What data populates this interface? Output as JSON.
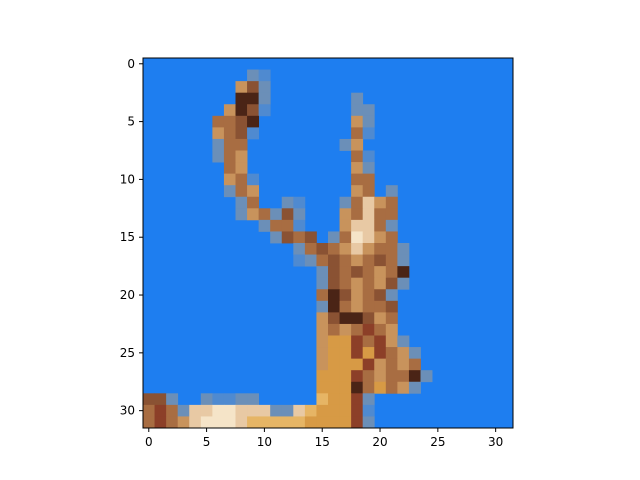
{
  "chart_data": {
    "type": "heatmap",
    "title": "",
    "xlabel": "",
    "ylabel": "",
    "image_size": [
      32,
      32
    ],
    "xlim": [
      -0.5,
      31.5
    ],
    "ylim": [
      31.5,
      -0.5
    ],
    "x_ticks": [
      0,
      5,
      10,
      15,
      20,
      25,
      30
    ],
    "y_ticks": [
      0,
      5,
      10,
      15,
      20,
      25,
      30
    ],
    "x_tick_labels": [
      "0",
      "5",
      "10",
      "15",
      "20",
      "25",
      "30"
    ],
    "y_tick_labels": [
      "0",
      "5",
      "10",
      "15",
      "20",
      "25",
      "30"
    ],
    "grid": false,
    "background_color": "#1e7ef0",
    "palette": {
      "dk": "#4a2416",
      "br": "#8a5233",
      "md": "#a86d42",
      "rb": "#8c3f28",
      "tn": "#c8935c",
      "or": "#d79a45",
      "lt": "#e8c9a4",
      "cr": "#f5e4c8",
      "gl": "#e6b565",
      "ed": "#6b8fb8",
      "gr": "#4f8ad0"
    },
    "pixels": [
      {
        "x": 9,
        "y": 1,
        "c": "ed"
      },
      {
        "x": 10,
        "y": 1,
        "c": "gr"
      },
      {
        "x": 8,
        "y": 2,
        "c": "tn"
      },
      {
        "x": 9,
        "y": 2,
        "c": "br"
      },
      {
        "x": 10,
        "y": 2,
        "c": "ed"
      },
      {
        "x": 8,
        "y": 3,
        "c": "dk"
      },
      {
        "x": 9,
        "y": 3,
        "c": "dk"
      },
      {
        "x": 10,
        "y": 3,
        "c": "ed"
      },
      {
        "x": 18,
        "y": 3,
        "c": "ed"
      },
      {
        "x": 7,
        "y": 4,
        "c": "tn"
      },
      {
        "x": 8,
        "y": 4,
        "c": "dk"
      },
      {
        "x": 9,
        "y": 4,
        "c": "br"
      },
      {
        "x": 10,
        "y": 4,
        "c": "gr"
      },
      {
        "x": 18,
        "y": 4,
        "c": "ed"
      },
      {
        "x": 19,
        "y": 4,
        "c": "ed"
      },
      {
        "x": 6,
        "y": 5,
        "c": "md"
      },
      {
        "x": 7,
        "y": 5,
        "c": "md"
      },
      {
        "x": 8,
        "y": 5,
        "c": "br"
      },
      {
        "x": 9,
        "y": 5,
        "c": "dk"
      },
      {
        "x": 18,
        "y": 5,
        "c": "tn"
      },
      {
        "x": 19,
        "y": 5,
        "c": "ed"
      },
      {
        "x": 6,
        "y": 6,
        "c": "tn"
      },
      {
        "x": 7,
        "y": 6,
        "c": "md"
      },
      {
        "x": 8,
        "y": 6,
        "c": "br"
      },
      {
        "x": 9,
        "y": 6,
        "c": "gr"
      },
      {
        "x": 18,
        "y": 6,
        "c": "md"
      },
      {
        "x": 19,
        "y": 6,
        "c": "gr"
      },
      {
        "x": 6,
        "y": 7,
        "c": "ed"
      },
      {
        "x": 7,
        "y": 7,
        "c": "md"
      },
      {
        "x": 8,
        "y": 7,
        "c": "md"
      },
      {
        "x": 17,
        "y": 7,
        "c": "ed"
      },
      {
        "x": 18,
        "y": 7,
        "c": "tn"
      },
      {
        "x": 6,
        "y": 8,
        "c": "ed"
      },
      {
        "x": 7,
        "y": 8,
        "c": "md"
      },
      {
        "x": 8,
        "y": 8,
        "c": "tn"
      },
      {
        "x": 18,
        "y": 8,
        "c": "md"
      },
      {
        "x": 19,
        "y": 8,
        "c": "gr"
      },
      {
        "x": 7,
        "y": 9,
        "c": "md"
      },
      {
        "x": 8,
        "y": 9,
        "c": "tn"
      },
      {
        "x": 18,
        "y": 9,
        "c": "tn"
      },
      {
        "x": 19,
        "y": 9,
        "c": "ed"
      },
      {
        "x": 7,
        "y": 10,
        "c": "tn"
      },
      {
        "x": 8,
        "y": 10,
        "c": "md"
      },
      {
        "x": 9,
        "y": 10,
        "c": "gr"
      },
      {
        "x": 18,
        "y": 10,
        "c": "md"
      },
      {
        "x": 19,
        "y": 10,
        "c": "md"
      },
      {
        "x": 7,
        "y": 11,
        "c": "ed"
      },
      {
        "x": 8,
        "y": 11,
        "c": "md"
      },
      {
        "x": 9,
        "y": 11,
        "c": "tn"
      },
      {
        "x": 18,
        "y": 11,
        "c": "tn"
      },
      {
        "x": 19,
        "y": 11,
        "c": "md"
      },
      {
        "x": 21,
        "y": 11,
        "c": "ed"
      },
      {
        "x": 8,
        "y": 12,
        "c": "ed"
      },
      {
        "x": 9,
        "y": 12,
        "c": "md"
      },
      {
        "x": 12,
        "y": 12,
        "c": "ed"
      },
      {
        "x": 13,
        "y": 12,
        "c": "gr"
      },
      {
        "x": 17,
        "y": 12,
        "c": "ed"
      },
      {
        "x": 18,
        "y": 12,
        "c": "md"
      },
      {
        "x": 19,
        "y": 12,
        "c": "lt"
      },
      {
        "x": 20,
        "y": 12,
        "c": "tn"
      },
      {
        "x": 21,
        "y": 12,
        "c": "md"
      },
      {
        "x": 8,
        "y": 13,
        "c": "ed"
      },
      {
        "x": 9,
        "y": 13,
        "c": "tn"
      },
      {
        "x": 10,
        "y": 13,
        "c": "md"
      },
      {
        "x": 11,
        "y": 13,
        "c": "ed"
      },
      {
        "x": 12,
        "y": 13,
        "c": "br"
      },
      {
        "x": 13,
        "y": 13,
        "c": "ed"
      },
      {
        "x": 17,
        "y": 13,
        "c": "tn"
      },
      {
        "x": 18,
        "y": 13,
        "c": "md"
      },
      {
        "x": 19,
        "y": 13,
        "c": "lt"
      },
      {
        "x": 20,
        "y": 13,
        "c": "md"
      },
      {
        "x": 21,
        "y": 13,
        "c": "md"
      },
      {
        "x": 10,
        "y": 14,
        "c": "ed"
      },
      {
        "x": 11,
        "y": 14,
        "c": "md"
      },
      {
        "x": 12,
        "y": 14,
        "c": "md"
      },
      {
        "x": 13,
        "y": 14,
        "c": "gr"
      },
      {
        "x": 17,
        "y": 14,
        "c": "tn"
      },
      {
        "x": 18,
        "y": 14,
        "c": "lt"
      },
      {
        "x": 19,
        "y": 14,
        "c": "lt"
      },
      {
        "x": 20,
        "y": 14,
        "c": "md"
      },
      {
        "x": 21,
        "y": 14,
        "c": "ed"
      },
      {
        "x": 11,
        "y": 15,
        "c": "ed"
      },
      {
        "x": 12,
        "y": 15,
        "c": "br"
      },
      {
        "x": 13,
        "y": 15,
        "c": "md"
      },
      {
        "x": 14,
        "y": 15,
        "c": "br"
      },
      {
        "x": 16,
        "y": 15,
        "c": "ed"
      },
      {
        "x": 17,
        "y": 15,
        "c": "md"
      },
      {
        "x": 18,
        "y": 15,
        "c": "cr"
      },
      {
        "x": 19,
        "y": 15,
        "c": "lt"
      },
      {
        "x": 20,
        "y": 15,
        "c": "tn"
      },
      {
        "x": 21,
        "y": 15,
        "c": "md"
      },
      {
        "x": 13,
        "y": 16,
        "c": "ed"
      },
      {
        "x": 14,
        "y": 16,
        "c": "md"
      },
      {
        "x": 15,
        "y": 16,
        "c": "br"
      },
      {
        "x": 16,
        "y": 16,
        "c": "md"
      },
      {
        "x": 17,
        "y": 16,
        "c": "tn"
      },
      {
        "x": 18,
        "y": 16,
        "c": "lt"
      },
      {
        "x": 19,
        "y": 16,
        "c": "tn"
      },
      {
        "x": 20,
        "y": 16,
        "c": "md"
      },
      {
        "x": 21,
        "y": 16,
        "c": "md"
      },
      {
        "x": 22,
        "y": 16,
        "c": "ed"
      },
      {
        "x": 13,
        "y": 17,
        "c": "gr"
      },
      {
        "x": 14,
        "y": 17,
        "c": "ed"
      },
      {
        "x": 15,
        "y": 17,
        "c": "md"
      },
      {
        "x": 16,
        "y": 17,
        "c": "br"
      },
      {
        "x": 17,
        "y": 17,
        "c": "md"
      },
      {
        "x": 18,
        "y": 17,
        "c": "tn"
      },
      {
        "x": 19,
        "y": 17,
        "c": "md"
      },
      {
        "x": 20,
        "y": 17,
        "c": "br"
      },
      {
        "x": 21,
        "y": 17,
        "c": "md"
      },
      {
        "x": 22,
        "y": 17,
        "c": "ed"
      },
      {
        "x": 15,
        "y": 18,
        "c": "ed"
      },
      {
        "x": 16,
        "y": 18,
        "c": "br"
      },
      {
        "x": 17,
        "y": 18,
        "c": "md"
      },
      {
        "x": 18,
        "y": 18,
        "c": "br"
      },
      {
        "x": 19,
        "y": 18,
        "c": "md"
      },
      {
        "x": 20,
        "y": 18,
        "c": "tn"
      },
      {
        "x": 21,
        "y": 18,
        "c": "md"
      },
      {
        "x": 22,
        "y": 18,
        "c": "dk"
      },
      {
        "x": 15,
        "y": 19,
        "c": "ed"
      },
      {
        "x": 16,
        "y": 19,
        "c": "br"
      },
      {
        "x": 17,
        "y": 19,
        "c": "md"
      },
      {
        "x": 18,
        "y": 19,
        "c": "tn"
      },
      {
        "x": 19,
        "y": 19,
        "c": "md"
      },
      {
        "x": 20,
        "y": 19,
        "c": "tn"
      },
      {
        "x": 21,
        "y": 19,
        "c": "br"
      },
      {
        "x": 22,
        "y": 19,
        "c": "ed"
      },
      {
        "x": 15,
        "y": 20,
        "c": "md"
      },
      {
        "x": 16,
        "y": 20,
        "c": "dk"
      },
      {
        "x": 17,
        "y": 20,
        "c": "br"
      },
      {
        "x": 18,
        "y": 20,
        "c": "tn"
      },
      {
        "x": 19,
        "y": 20,
        "c": "md"
      },
      {
        "x": 20,
        "y": 20,
        "c": "br"
      },
      {
        "x": 21,
        "y": 20,
        "c": "ed"
      },
      {
        "x": 15,
        "y": 21,
        "c": "ed"
      },
      {
        "x": 16,
        "y": 21,
        "c": "dk"
      },
      {
        "x": 17,
        "y": 21,
        "c": "md"
      },
      {
        "x": 18,
        "y": 21,
        "c": "tn"
      },
      {
        "x": 19,
        "y": 21,
        "c": "md"
      },
      {
        "x": 20,
        "y": 21,
        "c": "md"
      },
      {
        "x": 21,
        "y": 21,
        "c": "br"
      },
      {
        "x": 15,
        "y": 22,
        "c": "tn"
      },
      {
        "x": 16,
        "y": 22,
        "c": "br"
      },
      {
        "x": 17,
        "y": 22,
        "c": "dk"
      },
      {
        "x": 18,
        "y": 22,
        "c": "dk"
      },
      {
        "x": 19,
        "y": 22,
        "c": "br"
      },
      {
        "x": 20,
        "y": 22,
        "c": "tn"
      },
      {
        "x": 21,
        "y": 22,
        "c": "md"
      },
      {
        "x": 15,
        "y": 23,
        "c": "tn"
      },
      {
        "x": 16,
        "y": 23,
        "c": "md"
      },
      {
        "x": 17,
        "y": 23,
        "c": "tn"
      },
      {
        "x": 18,
        "y": 23,
        "c": "md"
      },
      {
        "x": 19,
        "y": 23,
        "c": "rb"
      },
      {
        "x": 20,
        "y": 23,
        "c": "md"
      },
      {
        "x": 21,
        "y": 23,
        "c": "tn"
      },
      {
        "x": 15,
        "y": 24,
        "c": "tn"
      },
      {
        "x": 16,
        "y": 24,
        "c": "or"
      },
      {
        "x": 17,
        "y": 24,
        "c": "or"
      },
      {
        "x": 18,
        "y": 24,
        "c": "rb"
      },
      {
        "x": 19,
        "y": 24,
        "c": "md"
      },
      {
        "x": 20,
        "y": 24,
        "c": "rb"
      },
      {
        "x": 21,
        "y": 24,
        "c": "tn"
      },
      {
        "x": 22,
        "y": 24,
        "c": "ed"
      },
      {
        "x": 15,
        "y": 25,
        "c": "tn"
      },
      {
        "x": 16,
        "y": 25,
        "c": "or"
      },
      {
        "x": 17,
        "y": 25,
        "c": "or"
      },
      {
        "x": 18,
        "y": 25,
        "c": "rb"
      },
      {
        "x": 19,
        "y": 25,
        "c": "or"
      },
      {
        "x": 20,
        "y": 25,
        "c": "rb"
      },
      {
        "x": 21,
        "y": 25,
        "c": "md"
      },
      {
        "x": 22,
        "y": 25,
        "c": "tn"
      },
      {
        "x": 23,
        "y": 25,
        "c": "ed"
      },
      {
        "x": 15,
        "y": 26,
        "c": "tn"
      },
      {
        "x": 16,
        "y": 26,
        "c": "or"
      },
      {
        "x": 17,
        "y": 26,
        "c": "or"
      },
      {
        "x": 18,
        "y": 26,
        "c": "or"
      },
      {
        "x": 19,
        "y": 26,
        "c": "rb"
      },
      {
        "x": 20,
        "y": 26,
        "c": "tn"
      },
      {
        "x": 21,
        "y": 26,
        "c": "md"
      },
      {
        "x": 22,
        "y": 26,
        "c": "tn"
      },
      {
        "x": 23,
        "y": 26,
        "c": "md"
      },
      {
        "x": 15,
        "y": 27,
        "c": "or"
      },
      {
        "x": 16,
        "y": 27,
        "c": "or"
      },
      {
        "x": 17,
        "y": 27,
        "c": "or"
      },
      {
        "x": 18,
        "y": 27,
        "c": "rb"
      },
      {
        "x": 19,
        "y": 27,
        "c": "md"
      },
      {
        "x": 20,
        "y": 27,
        "c": "tn"
      },
      {
        "x": 21,
        "y": 27,
        "c": "md"
      },
      {
        "x": 22,
        "y": 27,
        "c": "md"
      },
      {
        "x": 23,
        "y": 27,
        "c": "dk"
      },
      {
        "x": 24,
        "y": 27,
        "c": "ed"
      },
      {
        "x": 15,
        "y": 28,
        "c": "or"
      },
      {
        "x": 16,
        "y": 28,
        "c": "or"
      },
      {
        "x": 17,
        "y": 28,
        "c": "or"
      },
      {
        "x": 18,
        "y": 28,
        "c": "dk"
      },
      {
        "x": 19,
        "y": 28,
        "c": "md"
      },
      {
        "x": 20,
        "y": 28,
        "c": "or"
      },
      {
        "x": 21,
        "y": 28,
        "c": "md"
      },
      {
        "x": 22,
        "y": 28,
        "c": "tn"
      },
      {
        "x": 23,
        "y": 28,
        "c": "ed"
      },
      {
        "x": 0,
        "y": 29,
        "c": "br"
      },
      {
        "x": 1,
        "y": 29,
        "c": "br"
      },
      {
        "x": 2,
        "y": 29,
        "c": "ed"
      },
      {
        "x": 5,
        "y": 29,
        "c": "ed"
      },
      {
        "x": 6,
        "y": 29,
        "c": "gr"
      },
      {
        "x": 7,
        "y": 29,
        "c": "gr"
      },
      {
        "x": 8,
        "y": 29,
        "c": "ed"
      },
      {
        "x": 9,
        "y": 29,
        "c": "ed"
      },
      {
        "x": 15,
        "y": 29,
        "c": "gl"
      },
      {
        "x": 16,
        "y": 29,
        "c": "or"
      },
      {
        "x": 17,
        "y": 29,
        "c": "or"
      },
      {
        "x": 18,
        "y": 29,
        "c": "rb"
      },
      {
        "x": 19,
        "y": 29,
        "c": "ed"
      },
      {
        "x": 0,
        "y": 30,
        "c": "md"
      },
      {
        "x": 1,
        "y": 30,
        "c": "rb"
      },
      {
        "x": 2,
        "y": 30,
        "c": "md"
      },
      {
        "x": 3,
        "y": 30,
        "c": "ed"
      },
      {
        "x": 4,
        "y": 30,
        "c": "lt"
      },
      {
        "x": 5,
        "y": 30,
        "c": "lt"
      },
      {
        "x": 6,
        "y": 30,
        "c": "cr"
      },
      {
        "x": 7,
        "y": 30,
        "c": "cr"
      },
      {
        "x": 8,
        "y": 30,
        "c": "lt"
      },
      {
        "x": 9,
        "y": 30,
        "c": "lt"
      },
      {
        "x": 10,
        "y": 30,
        "c": "lt"
      },
      {
        "x": 11,
        "y": 30,
        "c": "ed"
      },
      {
        "x": 12,
        "y": 30,
        "c": "ed"
      },
      {
        "x": 13,
        "y": 30,
        "c": "lt"
      },
      {
        "x": 14,
        "y": 30,
        "c": "gl"
      },
      {
        "x": 15,
        "y": 30,
        "c": "or"
      },
      {
        "x": 16,
        "y": 30,
        "c": "or"
      },
      {
        "x": 17,
        "y": 30,
        "c": "or"
      },
      {
        "x": 18,
        "y": 30,
        "c": "rb"
      },
      {
        "x": 19,
        "y": 30,
        "c": "gr"
      },
      {
        "x": 0,
        "y": 31,
        "c": "md"
      },
      {
        "x": 1,
        "y": 31,
        "c": "rb"
      },
      {
        "x": 2,
        "y": 31,
        "c": "md"
      },
      {
        "x": 3,
        "y": 31,
        "c": "tn"
      },
      {
        "x": 4,
        "y": 31,
        "c": "lt"
      },
      {
        "x": 5,
        "y": 31,
        "c": "cr"
      },
      {
        "x": 6,
        "y": 31,
        "c": "cr"
      },
      {
        "x": 7,
        "y": 31,
        "c": "cr"
      },
      {
        "x": 8,
        "y": 31,
        "c": "lt"
      },
      {
        "x": 9,
        "y": 31,
        "c": "gl"
      },
      {
        "x": 10,
        "y": 31,
        "c": "gl"
      },
      {
        "x": 11,
        "y": 31,
        "c": "gl"
      },
      {
        "x": 12,
        "y": 31,
        "c": "gl"
      },
      {
        "x": 13,
        "y": 31,
        "c": "gl"
      },
      {
        "x": 14,
        "y": 31,
        "c": "or"
      },
      {
        "x": 15,
        "y": 31,
        "c": "or"
      },
      {
        "x": 16,
        "y": 31,
        "c": "or"
      },
      {
        "x": 17,
        "y": 31,
        "c": "or"
      },
      {
        "x": 18,
        "y": 31,
        "c": "rb"
      },
      {
        "x": 19,
        "y": 31,
        "c": "ed"
      }
    ]
  }
}
